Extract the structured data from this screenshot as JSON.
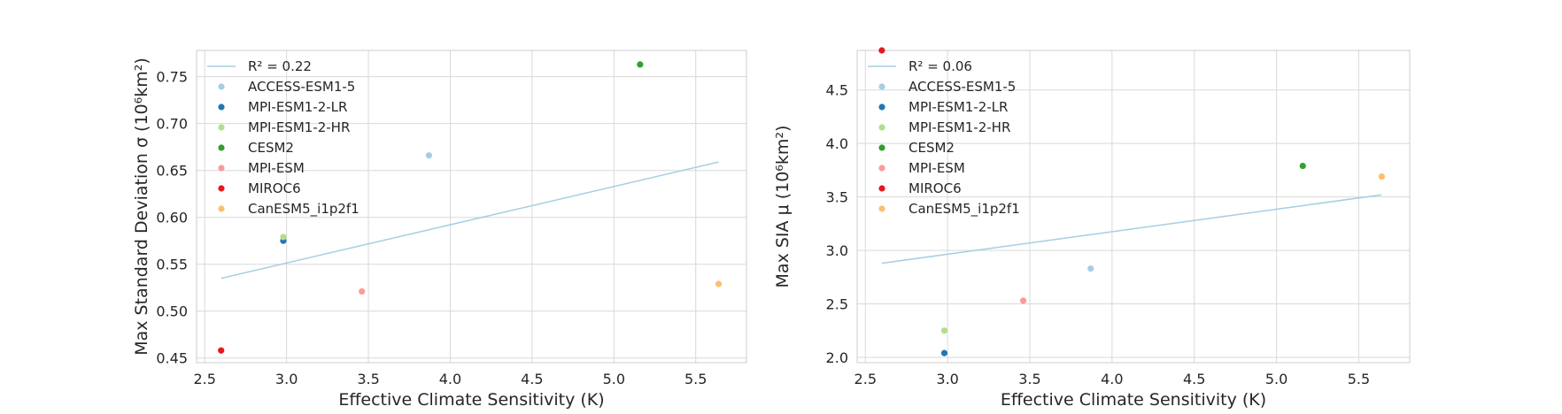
{
  "chart_data": [
    {
      "type": "scatter",
      "xlabel": "Effective Climate Sensitivity (K)",
      "ylabel": "Max Standard Deviation σ (10⁶km²)",
      "xlim": [
        2.45,
        5.81
      ],
      "ylim": [
        0.445,
        0.778
      ],
      "xticks": [
        2.5,
        3.0,
        3.5,
        4.0,
        4.5,
        5.0,
        5.5
      ],
      "yticks": [
        0.45,
        0.5,
        0.55,
        0.6,
        0.65,
        0.7,
        0.75
      ],
      "grid": true,
      "legend_position": "top-left",
      "fit_line": {
        "label": "R² = 0.22",
        "r2": 0.22,
        "x": [
          2.6,
          5.64
        ],
        "y": [
          0.535,
          0.659
        ],
        "color": "#a6cee3"
      },
      "series": [
        {
          "name": "ACCESS-ESM1-5",
          "color": "#a6cee3",
          "x": 3.87,
          "y": 0.666
        },
        {
          "name": "MPI-ESM1-2-LR",
          "color": "#1f78b4",
          "x": 2.98,
          "y": 0.575
        },
        {
          "name": "MPI-ESM1-2-HR",
          "color": "#b2df8a",
          "x": 2.98,
          "y": 0.579
        },
        {
          "name": "CESM2",
          "color": "#33a02c",
          "x": 5.16,
          "y": 0.763
        },
        {
          "name": "MPI-ESM",
          "color": "#fb9a99",
          "x": 3.46,
          "y": 0.521
        },
        {
          "name": "MIROC6",
          "color": "#e31a1c",
          "x": 2.6,
          "y": 0.458
        },
        {
          "name": "CanESM5_i1p2f1",
          "color": "#fdbf6f",
          "x": 5.64,
          "y": 0.529
        }
      ]
    },
    {
      "type": "scatter",
      "xlabel": "Effective Climate Sensitivity (K)",
      "ylabel": "Max SIA μ (10⁶km²)",
      "xlim": [
        2.45,
        5.81
      ],
      "ylim": [
        1.95,
        4.87
      ],
      "xticks": [
        2.5,
        3.0,
        3.5,
        4.0,
        4.5,
        5.0,
        5.5
      ],
      "yticks": [
        2.0,
        2.5,
        3.0,
        3.5,
        4.0,
        4.5
      ],
      "grid": true,
      "legend_position": "top-left",
      "fit_line": {
        "label": "R² = 0.06",
        "r2": 0.06,
        "x": [
          2.6,
          5.64
        ],
        "y": [
          2.88,
          3.52
        ],
        "color": "#a6cee3"
      },
      "series": [
        {
          "name": "ACCESS-ESM1-5",
          "color": "#a6cee3",
          "x": 3.87,
          "y": 2.83
        },
        {
          "name": "MPI-ESM1-2-LR",
          "color": "#1f78b4",
          "x": 2.98,
          "y": 2.04
        },
        {
          "name": "MPI-ESM1-2-HR",
          "color": "#b2df8a",
          "x": 2.98,
          "y": 2.25
        },
        {
          "name": "CESM2",
          "color": "#33a02c",
          "x": 5.16,
          "y": 3.79
        },
        {
          "name": "MPI-ESM",
          "color": "#fb9a99",
          "x": 3.46,
          "y": 2.53
        },
        {
          "name": "MIROC6",
          "color": "#e31a1c",
          "x": 2.6,
          "y": 4.87
        },
        {
          "name": "CanESM5_i1p2f1",
          "color": "#fdbf6f",
          "x": 5.64,
          "y": 3.69
        }
      ]
    }
  ]
}
